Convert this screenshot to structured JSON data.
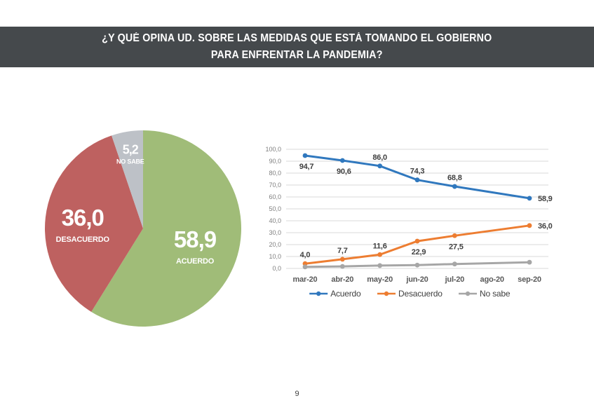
{
  "header": {
    "line1": "¿Y QUÉ OPINA UD. SOBRE LAS MEDIDAS QUE ESTÁ TOMANDO EL GOBIERNO",
    "line2": "PARA ENFRENTAR LA PANDEMIA?"
  },
  "footer": {
    "page_number": "9"
  },
  "colors": {
    "banner_bg": "#45494C",
    "pie_green": "#A0BC78",
    "pie_red": "#BE6160",
    "pie_gray": "#BDC1C7",
    "line_blue": "#3078BE",
    "line_orange": "#ED7D31",
    "line_gray": "#A6A6A6",
    "gridline": "#D9D9D9",
    "data_label": "#404040",
    "y_tick": "#7F7F7F",
    "x_tick": "#595959"
  },
  "chart_data": [
    {
      "type": "pie",
      "name": "opinion-pie",
      "direction": "clockwise",
      "start_angle_deg": 0,
      "number_format": "decimal-comma",
      "slices": [
        {
          "label": "ACUERDO",
          "value": 58.9,
          "color_key": "pie_green"
        },
        {
          "label": "DESACUERDO",
          "value": 36.0,
          "color_key": "pie_red"
        },
        {
          "label": "NO SABE",
          "value": 5.2,
          "color_key": "pie_gray"
        }
      ]
    },
    {
      "type": "line",
      "name": "opinion-trend",
      "categories": [
        "mar-20",
        "abr-20",
        "may-20",
        "jun-20",
        "jul-20",
        "ago-20",
        "sep-20"
      ],
      "series": [
        {
          "name": "Acuerdo",
          "color_key": "line_blue",
          "values": [
            94.7,
            90.6,
            86.0,
            74.3,
            68.8,
            null,
            58.9
          ],
          "labels_visible": true
        },
        {
          "name": "Desacuerdo",
          "color_key": "line_orange",
          "values": [
            4.0,
            7.7,
            11.6,
            22.9,
            27.5,
            null,
            36.0
          ],
          "labels_visible": true
        },
        {
          "name": "No sabe",
          "color_key": "line_gray",
          "values": [
            1.3,
            1.7,
            2.4,
            2.8,
            3.7,
            null,
            5.2
          ],
          "labels_visible": false
        }
      ],
      "ylim": [
        0,
        100
      ],
      "ytick_step": 10,
      "grid": true,
      "legend_position": "bottom",
      "number_format": "decimal-comma"
    }
  ]
}
